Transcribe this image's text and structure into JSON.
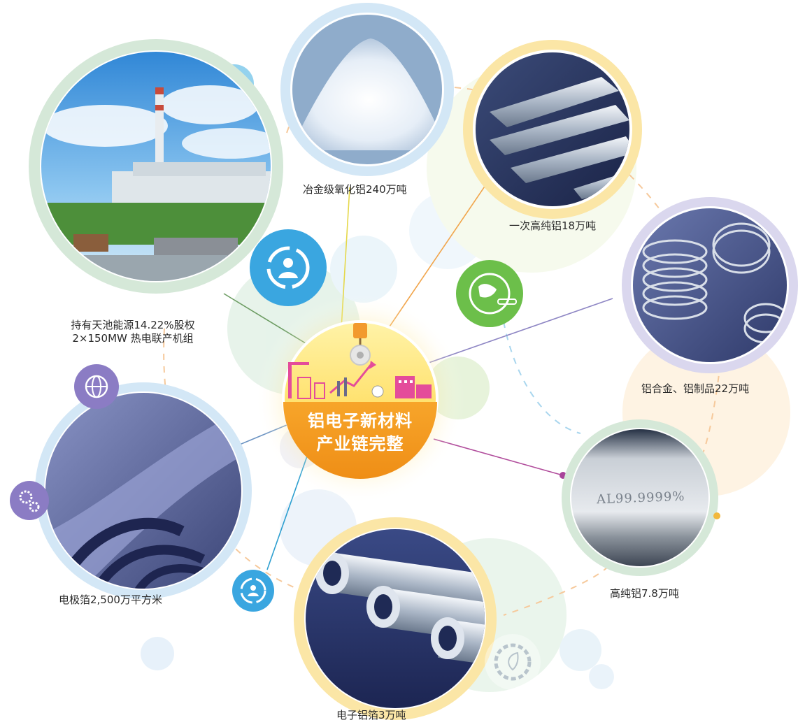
{
  "center": {
    "line1": "铝电子新材料",
    "line2": "产业链完整"
  },
  "nodes": {
    "alumina": {
      "label": "冶金级氧化铝240万吨"
    },
    "primary_aluminum": {
      "label": "一次高纯铝18万吨"
    },
    "power_plant": {
      "label_line1": "持有天池能源14.22%股权",
      "label_line2": "2×150MW 热电联产机组"
    },
    "alloy_products": {
      "label": "铝合金、铝制品22万吨"
    },
    "high_purity": {
      "label": "高纯铝7.8万吨",
      "ingot_text": "AL99.9999%"
    },
    "electrode_foil": {
      "label": "电极箔2,500万平方米"
    },
    "electronic_foil": {
      "label": "电子铝箔3万吨"
    }
  },
  "colors": {
    "center_orange": "#f39a1e",
    "center_yellow": "#ffd84a",
    "ring_green": "#cfe3d4",
    "ring_blue": "#cfe5f5",
    "ring_yellow": "#fbe6a6",
    "ring_lavender": "#dad7ee",
    "icon_blue": "#3aa6e0",
    "icon_green": "#6cbf4a",
    "icon_purple": "#8b7cc4"
  },
  "icons": [
    "recycle-user-icon",
    "globe-thermometer-icon",
    "globe-icon",
    "gears-icon",
    "refresh-user-icon",
    "gear-leaf-icon"
  ]
}
